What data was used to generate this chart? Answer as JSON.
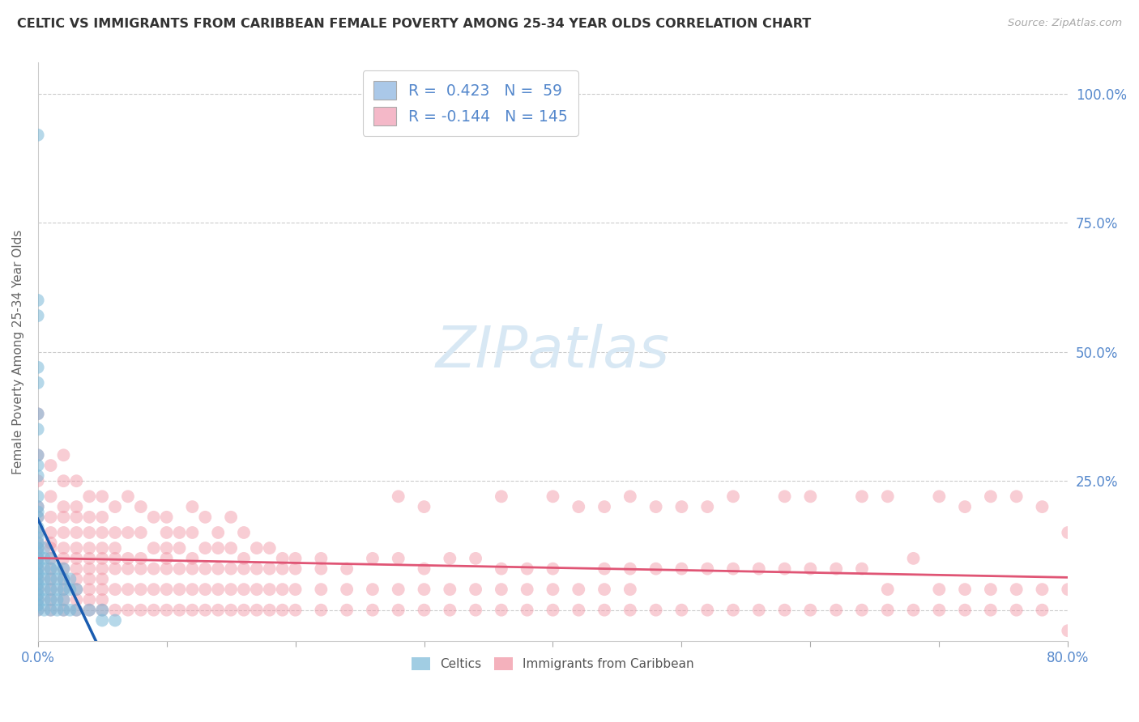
{
  "title": "CELTIC VS IMMIGRANTS FROM CARIBBEAN FEMALE POVERTY AMONG 25-34 YEAR OLDS CORRELATION CHART",
  "source": "Source: ZipAtlas.com",
  "ylabel": "Female Poverty Among 25-34 Year Olds",
  "xlim": [
    0.0,
    0.8
  ],
  "ylim": [
    -0.06,
    1.06
  ],
  "xticks": [
    0.0,
    0.1,
    0.2,
    0.3,
    0.4,
    0.5,
    0.6,
    0.7,
    0.8
  ],
  "xticklabels": [
    "0.0%",
    "",
    "",
    "",
    "",
    "",
    "",
    "",
    "80.0%"
  ],
  "yticks": [
    0.0,
    0.25,
    0.5,
    0.75,
    1.0
  ],
  "yticklabels": [
    "",
    "25.0%",
    "50.0%",
    "75.0%",
    "100.0%"
  ],
  "legend_blue_color": "#aac8e8",
  "legend_pink_color": "#f4b8c8",
  "blue_dot_color": "#7ab8d8",
  "pink_dot_color": "#f090a0",
  "blue_line_color": "#1a5cb0",
  "pink_line_color": "#e05575",
  "background_color": "#ffffff",
  "grid_color": "#cccccc",
  "title_color": "#333333",
  "axis_label_color": "#666666",
  "tick_label_color": "#5588cc",
  "watermark_color": "#d8e8f4",
  "celtics_data": [
    [
      0.0,
      0.92
    ],
    [
      0.0,
      0.6
    ],
    [
      0.0,
      0.57
    ],
    [
      0.0,
      0.47
    ],
    [
      0.0,
      0.44
    ],
    [
      0.0,
      0.38
    ],
    [
      0.0,
      0.35
    ],
    [
      0.0,
      0.3
    ],
    [
      0.0,
      0.28
    ],
    [
      0.0,
      0.26
    ],
    [
      0.0,
      0.22
    ],
    [
      0.0,
      0.2
    ],
    [
      0.0,
      0.19
    ],
    [
      0.0,
      0.18
    ],
    [
      0.0,
      0.16
    ],
    [
      0.0,
      0.15
    ],
    [
      0.0,
      0.14
    ],
    [
      0.0,
      0.13
    ],
    [
      0.0,
      0.12
    ],
    [
      0.0,
      0.11
    ],
    [
      0.0,
      0.1
    ],
    [
      0.0,
      0.09
    ],
    [
      0.0,
      0.08
    ],
    [
      0.0,
      0.07
    ],
    [
      0.0,
      0.06
    ],
    [
      0.0,
      0.05
    ],
    [
      0.0,
      0.04
    ],
    [
      0.0,
      0.03
    ],
    [
      0.0,
      0.02
    ],
    [
      0.0,
      0.01
    ],
    [
      0.0,
      0.0
    ],
    [
      0.005,
      0.12
    ],
    [
      0.005,
      0.1
    ],
    [
      0.005,
      0.08
    ],
    [
      0.005,
      0.06
    ],
    [
      0.005,
      0.04
    ],
    [
      0.005,
      0.02
    ],
    [
      0.005,
      0.0
    ],
    [
      0.01,
      0.1
    ],
    [
      0.01,
      0.08
    ],
    [
      0.01,
      0.06
    ],
    [
      0.01,
      0.04
    ],
    [
      0.01,
      0.02
    ],
    [
      0.01,
      0.0
    ],
    [
      0.015,
      0.08
    ],
    [
      0.015,
      0.06
    ],
    [
      0.015,
      0.04
    ],
    [
      0.015,
      0.02
    ],
    [
      0.015,
      0.0
    ],
    [
      0.02,
      0.08
    ],
    [
      0.02,
      0.06
    ],
    [
      0.02,
      0.04
    ],
    [
      0.02,
      0.02
    ],
    [
      0.02,
      0.0
    ],
    [
      0.025,
      0.06
    ],
    [
      0.025,
      0.04
    ],
    [
      0.025,
      0.0
    ],
    [
      0.03,
      0.04
    ],
    [
      0.03,
      0.0
    ],
    [
      0.04,
      0.0
    ],
    [
      0.05,
      0.0
    ],
    [
      0.05,
      -0.02
    ],
    [
      0.06,
      -0.02
    ]
  ],
  "caribbean_data": [
    [
      0.0,
      0.38
    ],
    [
      0.0,
      0.3
    ],
    [
      0.0,
      0.25
    ],
    [
      0.0,
      0.2
    ],
    [
      0.0,
      0.18
    ],
    [
      0.0,
      0.15
    ],
    [
      0.0,
      0.13
    ],
    [
      0.0,
      0.12
    ],
    [
      0.0,
      0.1
    ],
    [
      0.0,
      0.08
    ],
    [
      0.0,
      0.06
    ],
    [
      0.0,
      0.04
    ],
    [
      0.0,
      0.02
    ],
    [
      0.0,
      0.0
    ],
    [
      0.01,
      0.28
    ],
    [
      0.01,
      0.22
    ],
    [
      0.01,
      0.18
    ],
    [
      0.01,
      0.15
    ],
    [
      0.01,
      0.13
    ],
    [
      0.01,
      0.12
    ],
    [
      0.01,
      0.1
    ],
    [
      0.01,
      0.08
    ],
    [
      0.01,
      0.06
    ],
    [
      0.01,
      0.04
    ],
    [
      0.01,
      0.02
    ],
    [
      0.01,
      0.0
    ],
    [
      0.02,
      0.3
    ],
    [
      0.02,
      0.25
    ],
    [
      0.02,
      0.2
    ],
    [
      0.02,
      0.18
    ],
    [
      0.02,
      0.15
    ],
    [
      0.02,
      0.12
    ],
    [
      0.02,
      0.1
    ],
    [
      0.02,
      0.08
    ],
    [
      0.02,
      0.06
    ],
    [
      0.02,
      0.04
    ],
    [
      0.02,
      0.02
    ],
    [
      0.02,
      0.0
    ],
    [
      0.03,
      0.25
    ],
    [
      0.03,
      0.2
    ],
    [
      0.03,
      0.18
    ],
    [
      0.03,
      0.15
    ],
    [
      0.03,
      0.12
    ],
    [
      0.03,
      0.1
    ],
    [
      0.03,
      0.08
    ],
    [
      0.03,
      0.06
    ],
    [
      0.03,
      0.04
    ],
    [
      0.03,
      0.02
    ],
    [
      0.03,
      0.0
    ],
    [
      0.04,
      0.22
    ],
    [
      0.04,
      0.18
    ],
    [
      0.04,
      0.15
    ],
    [
      0.04,
      0.12
    ],
    [
      0.04,
      0.1
    ],
    [
      0.04,
      0.08
    ],
    [
      0.04,
      0.06
    ],
    [
      0.04,
      0.04
    ],
    [
      0.04,
      0.02
    ],
    [
      0.04,
      0.0
    ],
    [
      0.05,
      0.22
    ],
    [
      0.05,
      0.18
    ],
    [
      0.05,
      0.15
    ],
    [
      0.05,
      0.12
    ],
    [
      0.05,
      0.1
    ],
    [
      0.05,
      0.08
    ],
    [
      0.05,
      0.06
    ],
    [
      0.05,
      0.04
    ],
    [
      0.05,
      0.02
    ],
    [
      0.05,
      0.0
    ],
    [
      0.06,
      0.2
    ],
    [
      0.06,
      0.15
    ],
    [
      0.06,
      0.12
    ],
    [
      0.06,
      0.1
    ],
    [
      0.06,
      0.08
    ],
    [
      0.06,
      0.04
    ],
    [
      0.06,
      0.0
    ],
    [
      0.07,
      0.22
    ],
    [
      0.07,
      0.15
    ],
    [
      0.07,
      0.1
    ],
    [
      0.07,
      0.08
    ],
    [
      0.07,
      0.04
    ],
    [
      0.07,
      0.0
    ],
    [
      0.08,
      0.2
    ],
    [
      0.08,
      0.15
    ],
    [
      0.08,
      0.1
    ],
    [
      0.08,
      0.08
    ],
    [
      0.08,
      0.04
    ],
    [
      0.08,
      0.0
    ],
    [
      0.09,
      0.18
    ],
    [
      0.09,
      0.12
    ],
    [
      0.09,
      0.08
    ],
    [
      0.09,
      0.04
    ],
    [
      0.09,
      0.0
    ],
    [
      0.1,
      0.18
    ],
    [
      0.1,
      0.15
    ],
    [
      0.1,
      0.12
    ],
    [
      0.1,
      0.1
    ],
    [
      0.1,
      0.08
    ],
    [
      0.1,
      0.04
    ],
    [
      0.1,
      0.0
    ],
    [
      0.11,
      0.15
    ],
    [
      0.11,
      0.12
    ],
    [
      0.11,
      0.08
    ],
    [
      0.11,
      0.04
    ],
    [
      0.11,
      0.0
    ],
    [
      0.12,
      0.2
    ],
    [
      0.12,
      0.15
    ],
    [
      0.12,
      0.1
    ],
    [
      0.12,
      0.08
    ],
    [
      0.12,
      0.04
    ],
    [
      0.12,
      0.0
    ],
    [
      0.13,
      0.18
    ],
    [
      0.13,
      0.12
    ],
    [
      0.13,
      0.08
    ],
    [
      0.13,
      0.04
    ],
    [
      0.13,
      0.0
    ],
    [
      0.14,
      0.15
    ],
    [
      0.14,
      0.12
    ],
    [
      0.14,
      0.08
    ],
    [
      0.14,
      0.04
    ],
    [
      0.14,
      0.0
    ],
    [
      0.15,
      0.18
    ],
    [
      0.15,
      0.12
    ],
    [
      0.15,
      0.08
    ],
    [
      0.15,
      0.04
    ],
    [
      0.15,
      0.0
    ],
    [
      0.16,
      0.15
    ],
    [
      0.16,
      0.1
    ],
    [
      0.16,
      0.08
    ],
    [
      0.16,
      0.04
    ],
    [
      0.16,
      0.0
    ],
    [
      0.17,
      0.12
    ],
    [
      0.17,
      0.08
    ],
    [
      0.17,
      0.04
    ],
    [
      0.17,
      0.0
    ],
    [
      0.18,
      0.12
    ],
    [
      0.18,
      0.08
    ],
    [
      0.18,
      0.04
    ],
    [
      0.18,
      0.0
    ],
    [
      0.19,
      0.1
    ],
    [
      0.19,
      0.08
    ],
    [
      0.19,
      0.04
    ],
    [
      0.19,
      0.0
    ],
    [
      0.2,
      0.1
    ],
    [
      0.2,
      0.08
    ],
    [
      0.2,
      0.04
    ],
    [
      0.2,
      0.0
    ],
    [
      0.22,
      0.1
    ],
    [
      0.22,
      0.08
    ],
    [
      0.22,
      0.04
    ],
    [
      0.22,
      0.0
    ],
    [
      0.24,
      0.08
    ],
    [
      0.24,
      0.04
    ],
    [
      0.24,
      0.0
    ],
    [
      0.26,
      0.1
    ],
    [
      0.26,
      0.04
    ],
    [
      0.26,
      0.0
    ],
    [
      0.28,
      0.22
    ],
    [
      0.28,
      0.1
    ],
    [
      0.28,
      0.04
    ],
    [
      0.28,
      0.0
    ],
    [
      0.3,
      0.2
    ],
    [
      0.3,
      0.08
    ],
    [
      0.3,
      0.04
    ],
    [
      0.3,
      0.0
    ],
    [
      0.32,
      0.1
    ],
    [
      0.32,
      0.04
    ],
    [
      0.32,
      0.0
    ],
    [
      0.34,
      0.1
    ],
    [
      0.34,
      0.04
    ],
    [
      0.34,
      0.0
    ],
    [
      0.36,
      0.22
    ],
    [
      0.36,
      0.08
    ],
    [
      0.36,
      0.04
    ],
    [
      0.36,
      0.0
    ],
    [
      0.38,
      0.08
    ],
    [
      0.38,
      0.04
    ],
    [
      0.38,
      0.0
    ],
    [
      0.4,
      0.22
    ],
    [
      0.4,
      0.08
    ],
    [
      0.4,
      0.04
    ],
    [
      0.4,
      0.0
    ],
    [
      0.42,
      0.2
    ],
    [
      0.42,
      0.04
    ],
    [
      0.42,
      0.0
    ],
    [
      0.44,
      0.2
    ],
    [
      0.44,
      0.08
    ],
    [
      0.44,
      0.04
    ],
    [
      0.44,
      0.0
    ],
    [
      0.46,
      0.22
    ],
    [
      0.46,
      0.08
    ],
    [
      0.46,
      0.04
    ],
    [
      0.46,
      0.0
    ],
    [
      0.48,
      0.2
    ],
    [
      0.48,
      0.08
    ],
    [
      0.48,
      0.0
    ],
    [
      0.5,
      0.2
    ],
    [
      0.5,
      0.08
    ],
    [
      0.5,
      0.0
    ],
    [
      0.52,
      0.2
    ],
    [
      0.52,
      0.08
    ],
    [
      0.52,
      0.0
    ],
    [
      0.54,
      0.22
    ],
    [
      0.54,
      0.08
    ],
    [
      0.54,
      0.0
    ],
    [
      0.56,
      0.08
    ],
    [
      0.56,
      0.0
    ],
    [
      0.58,
      0.22
    ],
    [
      0.58,
      0.08
    ],
    [
      0.58,
      0.0
    ],
    [
      0.6,
      0.22
    ],
    [
      0.6,
      0.08
    ],
    [
      0.6,
      0.0
    ],
    [
      0.62,
      0.08
    ],
    [
      0.62,
      0.0
    ],
    [
      0.64,
      0.22
    ],
    [
      0.64,
      0.08
    ],
    [
      0.64,
      0.0
    ],
    [
      0.66,
      0.22
    ],
    [
      0.66,
      0.04
    ],
    [
      0.66,
      0.0
    ],
    [
      0.68,
      0.1
    ],
    [
      0.68,
      0.0
    ],
    [
      0.7,
      0.22
    ],
    [
      0.7,
      0.04
    ],
    [
      0.7,
      0.0
    ],
    [
      0.72,
      0.2
    ],
    [
      0.72,
      0.04
    ],
    [
      0.72,
      0.0
    ],
    [
      0.74,
      0.22
    ],
    [
      0.74,
      0.04
    ],
    [
      0.74,
      0.0
    ],
    [
      0.76,
      0.22
    ],
    [
      0.76,
      0.04
    ],
    [
      0.76,
      0.0
    ],
    [
      0.78,
      0.2
    ],
    [
      0.78,
      0.04
    ],
    [
      0.78,
      0.0
    ],
    [
      0.8,
      0.15
    ],
    [
      0.8,
      0.04
    ],
    [
      0.8,
      -0.04
    ]
  ]
}
